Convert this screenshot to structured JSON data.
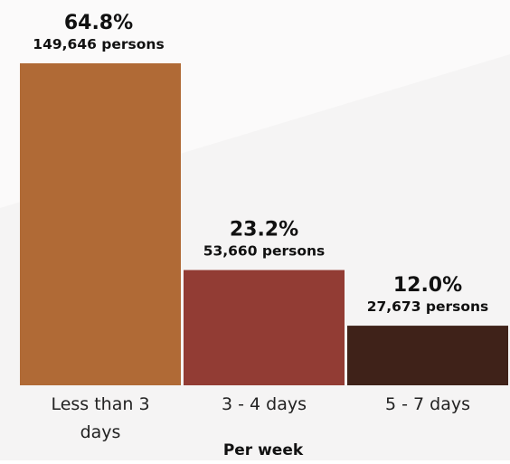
{
  "chart_data": {
    "type": "bar",
    "categories": [
      "Less than 3 days",
      "3 - 4 days",
      "5 - 7 days"
    ],
    "category_lines": [
      [
        "Less than 3",
        "days"
      ],
      [
        "3 - 4 days"
      ],
      [
        "5 - 7 days"
      ]
    ],
    "values": [
      64.8,
      23.2,
      12.0
    ],
    "percent_labels": [
      "64.8%",
      "23.2%",
      "12.0%"
    ],
    "count_labels": [
      "149,646 persons",
      "53,660 persons",
      "27,673 persons"
    ],
    "counts": [
      149646,
      53660,
      27673
    ],
    "colors": [
      "#b06a36",
      "#923c34",
      "#3f2219"
    ],
    "title": "",
    "xlabel": "Per week",
    "ylabel": "",
    "ylim": [
      0,
      64.8
    ],
    "grid": false,
    "legend": "none"
  }
}
